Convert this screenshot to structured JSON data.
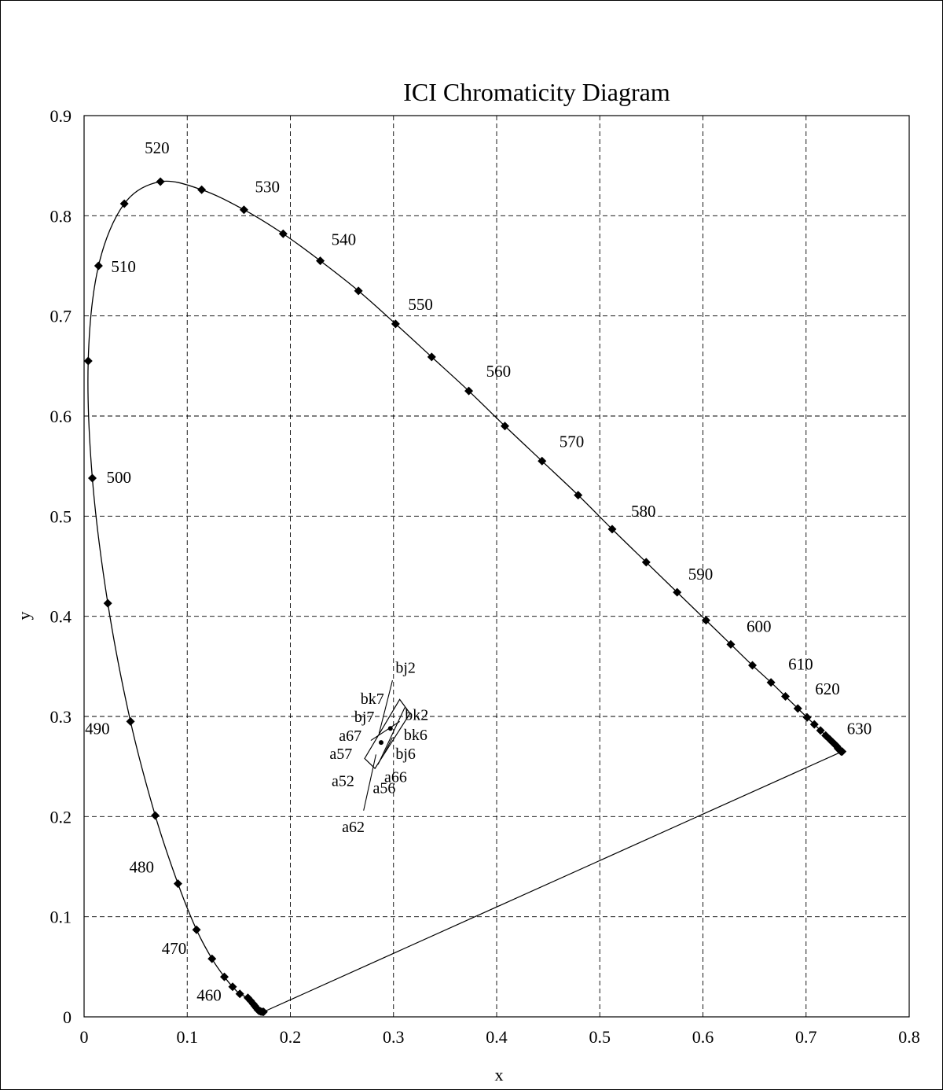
{
  "chart_data": {
    "type": "scatter",
    "title": "ICI Chromaticity Diagram",
    "xlabel": "x",
    "ylabel": "y",
    "xlim": [
      0,
      0.8
    ],
    "ylim": [
      0,
      0.9
    ],
    "xticks": [
      "0",
      "0.1",
      "0.2",
      "0.3",
      "0.4",
      "0.5",
      "0.6",
      "0.7",
      "0.8"
    ],
    "yticks": [
      "0",
      "0.1",
      "0.2",
      "0.3",
      "0.4",
      "0.5",
      "0.6",
      "0.7",
      "0.8",
      "0.9"
    ],
    "grid": true,
    "series": [
      {
        "points": [
          [
            0.174,
            0.005
          ],
          [
            0.1725,
            0.005
          ],
          [
            0.171,
            0.0055
          ],
          [
            0.1697,
            0.006
          ],
          [
            0.1685,
            0.007
          ],
          [
            0.167,
            0.009
          ],
          [
            0.1655,
            0.011
          ],
          [
            0.164,
            0.013
          ],
          [
            0.1615,
            0.016
          ],
          [
            0.1588,
            0.019
          ],
          [
            0.151,
            0.023
          ],
          [
            0.144,
            0.03
          ],
          [
            0.136,
            0.04
          ],
          [
            0.124,
            0.058
          ],
          [
            0.109,
            0.087
          ],
          [
            0.091,
            0.133
          ],
          [
            0.069,
            0.201
          ],
          [
            0.045,
            0.295
          ],
          [
            0.023,
            0.413
          ],
          [
            0.008,
            0.538
          ],
          [
            0.004,
            0.655
          ],
          [
            0.014,
            0.75
          ],
          [
            0.039,
            0.812
          ],
          [
            0.074,
            0.834
          ],
          [
            0.114,
            0.826
          ],
          [
            0.155,
            0.806
          ],
          [
            0.193,
            0.782
          ],
          [
            0.229,
            0.755
          ],
          [
            0.266,
            0.725
          ],
          [
            0.302,
            0.692
          ],
          [
            0.337,
            0.659
          ],
          [
            0.373,
            0.625
          ],
          [
            0.408,
            0.59
          ],
          [
            0.444,
            0.555
          ],
          [
            0.479,
            0.521
          ],
          [
            0.512,
            0.487
          ],
          [
            0.545,
            0.454
          ],
          [
            0.575,
            0.424
          ],
          [
            0.603,
            0.396
          ],
          [
            0.627,
            0.372
          ],
          [
            0.648,
            0.351
          ],
          [
            0.666,
            0.334
          ],
          [
            0.68,
            0.32
          ],
          [
            0.692,
            0.308
          ],
          [
            0.701,
            0.299
          ],
          [
            0.708,
            0.292
          ],
          [
            0.714,
            0.286
          ],
          [
            0.719,
            0.281
          ],
          [
            0.723,
            0.277
          ],
          [
            0.726,
            0.274
          ],
          [
            0.728,
            0.272
          ],
          [
            0.73,
            0.27
          ],
          [
            0.731,
            0.268
          ],
          [
            0.732,
            0.267
          ],
          [
            0.733,
            0.266
          ],
          [
            0.734,
            0.265
          ],
          [
            0.735,
            0.265
          ]
        ]
      }
    ],
    "wavelength_labels": [
      {
        "text": "460",
        "x": 0.164,
        "y": 0.013
      },
      {
        "text": "470",
        "x": 0.124,
        "y": 0.058
      },
      {
        "text": "480",
        "x": 0.091,
        "y": 0.133
      },
      {
        "text": "490",
        "x": 0.045,
        "y": 0.295
      },
      {
        "text": "500",
        "x": 0.008,
        "y": 0.538
      },
      {
        "text": "510",
        "x": 0.014,
        "y": 0.75
      },
      {
        "text": "520",
        "x": 0.074,
        "y": 0.834
      },
      {
        "text": "530",
        "x": 0.155,
        "y": 0.806
      },
      {
        "text": "540",
        "x": 0.229,
        "y": 0.755
      },
      {
        "text": "550",
        "x": 0.302,
        "y": 0.692
      },
      {
        "text": "560",
        "x": 0.373,
        "y": 0.625
      },
      {
        "text": "570",
        "x": 0.444,
        "y": 0.555
      },
      {
        "text": "580",
        "x": 0.512,
        "y": 0.487
      },
      {
        "text": "590",
        "x": 0.575,
        "y": 0.424
      },
      {
        "text": "600",
        "x": 0.627,
        "y": 0.372
      },
      {
        "text": "610",
        "x": 0.666,
        "y": 0.334
      },
      {
        "text": "620",
        "x": 0.692,
        "y": 0.308
      },
      {
        "text": "630",
        "x": 0.735,
        "y": 0.265
      }
    ],
    "purple_line": [
      [
        0.174,
        0.005
      ],
      [
        0.735,
        0.265
      ]
    ],
    "quadrilaterals": [
      [
        [
          0.272,
          0.258
        ],
        [
          0.282,
          0.248
        ],
        [
          0.316,
          0.303
        ],
        [
          0.306,
          0.317
        ]
      ],
      [
        [
          0.278,
          0.276
        ],
        [
          0.306,
          0.295
        ]
      ],
      [
        [
          0.285,
          0.252
        ],
        [
          0.311,
          0.309
        ]
      ],
      [
        [
          0.291,
          0.263
        ],
        [
          0.299,
          0.279
        ]
      ]
    ],
    "centre_points": [
      [
        0.288,
        0.274
      ],
      [
        0.297,
        0.288
      ]
    ],
    "point_labels": [
      {
        "text": "bj2",
        "x": 0.302,
        "y": 0.349
      },
      {
        "text": "bk7",
        "x": 0.268,
        "y": 0.318
      },
      {
        "text": "bj7",
        "x": 0.262,
        "y": 0.3
      },
      {
        "text": "bk2",
        "x": 0.311,
        "y": 0.302
      },
      {
        "text": "a67",
        "x": 0.247,
        "y": 0.281
      },
      {
        "text": "bk6",
        "x": 0.31,
        "y": 0.282
      },
      {
        "text": "bj6",
        "x": 0.302,
        "y": 0.263
      },
      {
        "text": "a57",
        "x": 0.238,
        "y": 0.263
      },
      {
        "text": "a66",
        "x": 0.291,
        "y": 0.24
      },
      {
        "text": "a52",
        "x": 0.24,
        "y": 0.236
      },
      {
        "text": "a56",
        "x": 0.28,
        "y": 0.229
      },
      {
        "text": "a62",
        "x": 0.25,
        "y": 0.19
      }
    ],
    "leader_lines": [
      [
        [
          0.299,
          0.336
        ],
        [
          0.286,
          0.283
        ]
      ],
      [
        [
          0.271,
          0.206
        ],
        [
          0.283,
          0.262
        ]
      ]
    ]
  }
}
